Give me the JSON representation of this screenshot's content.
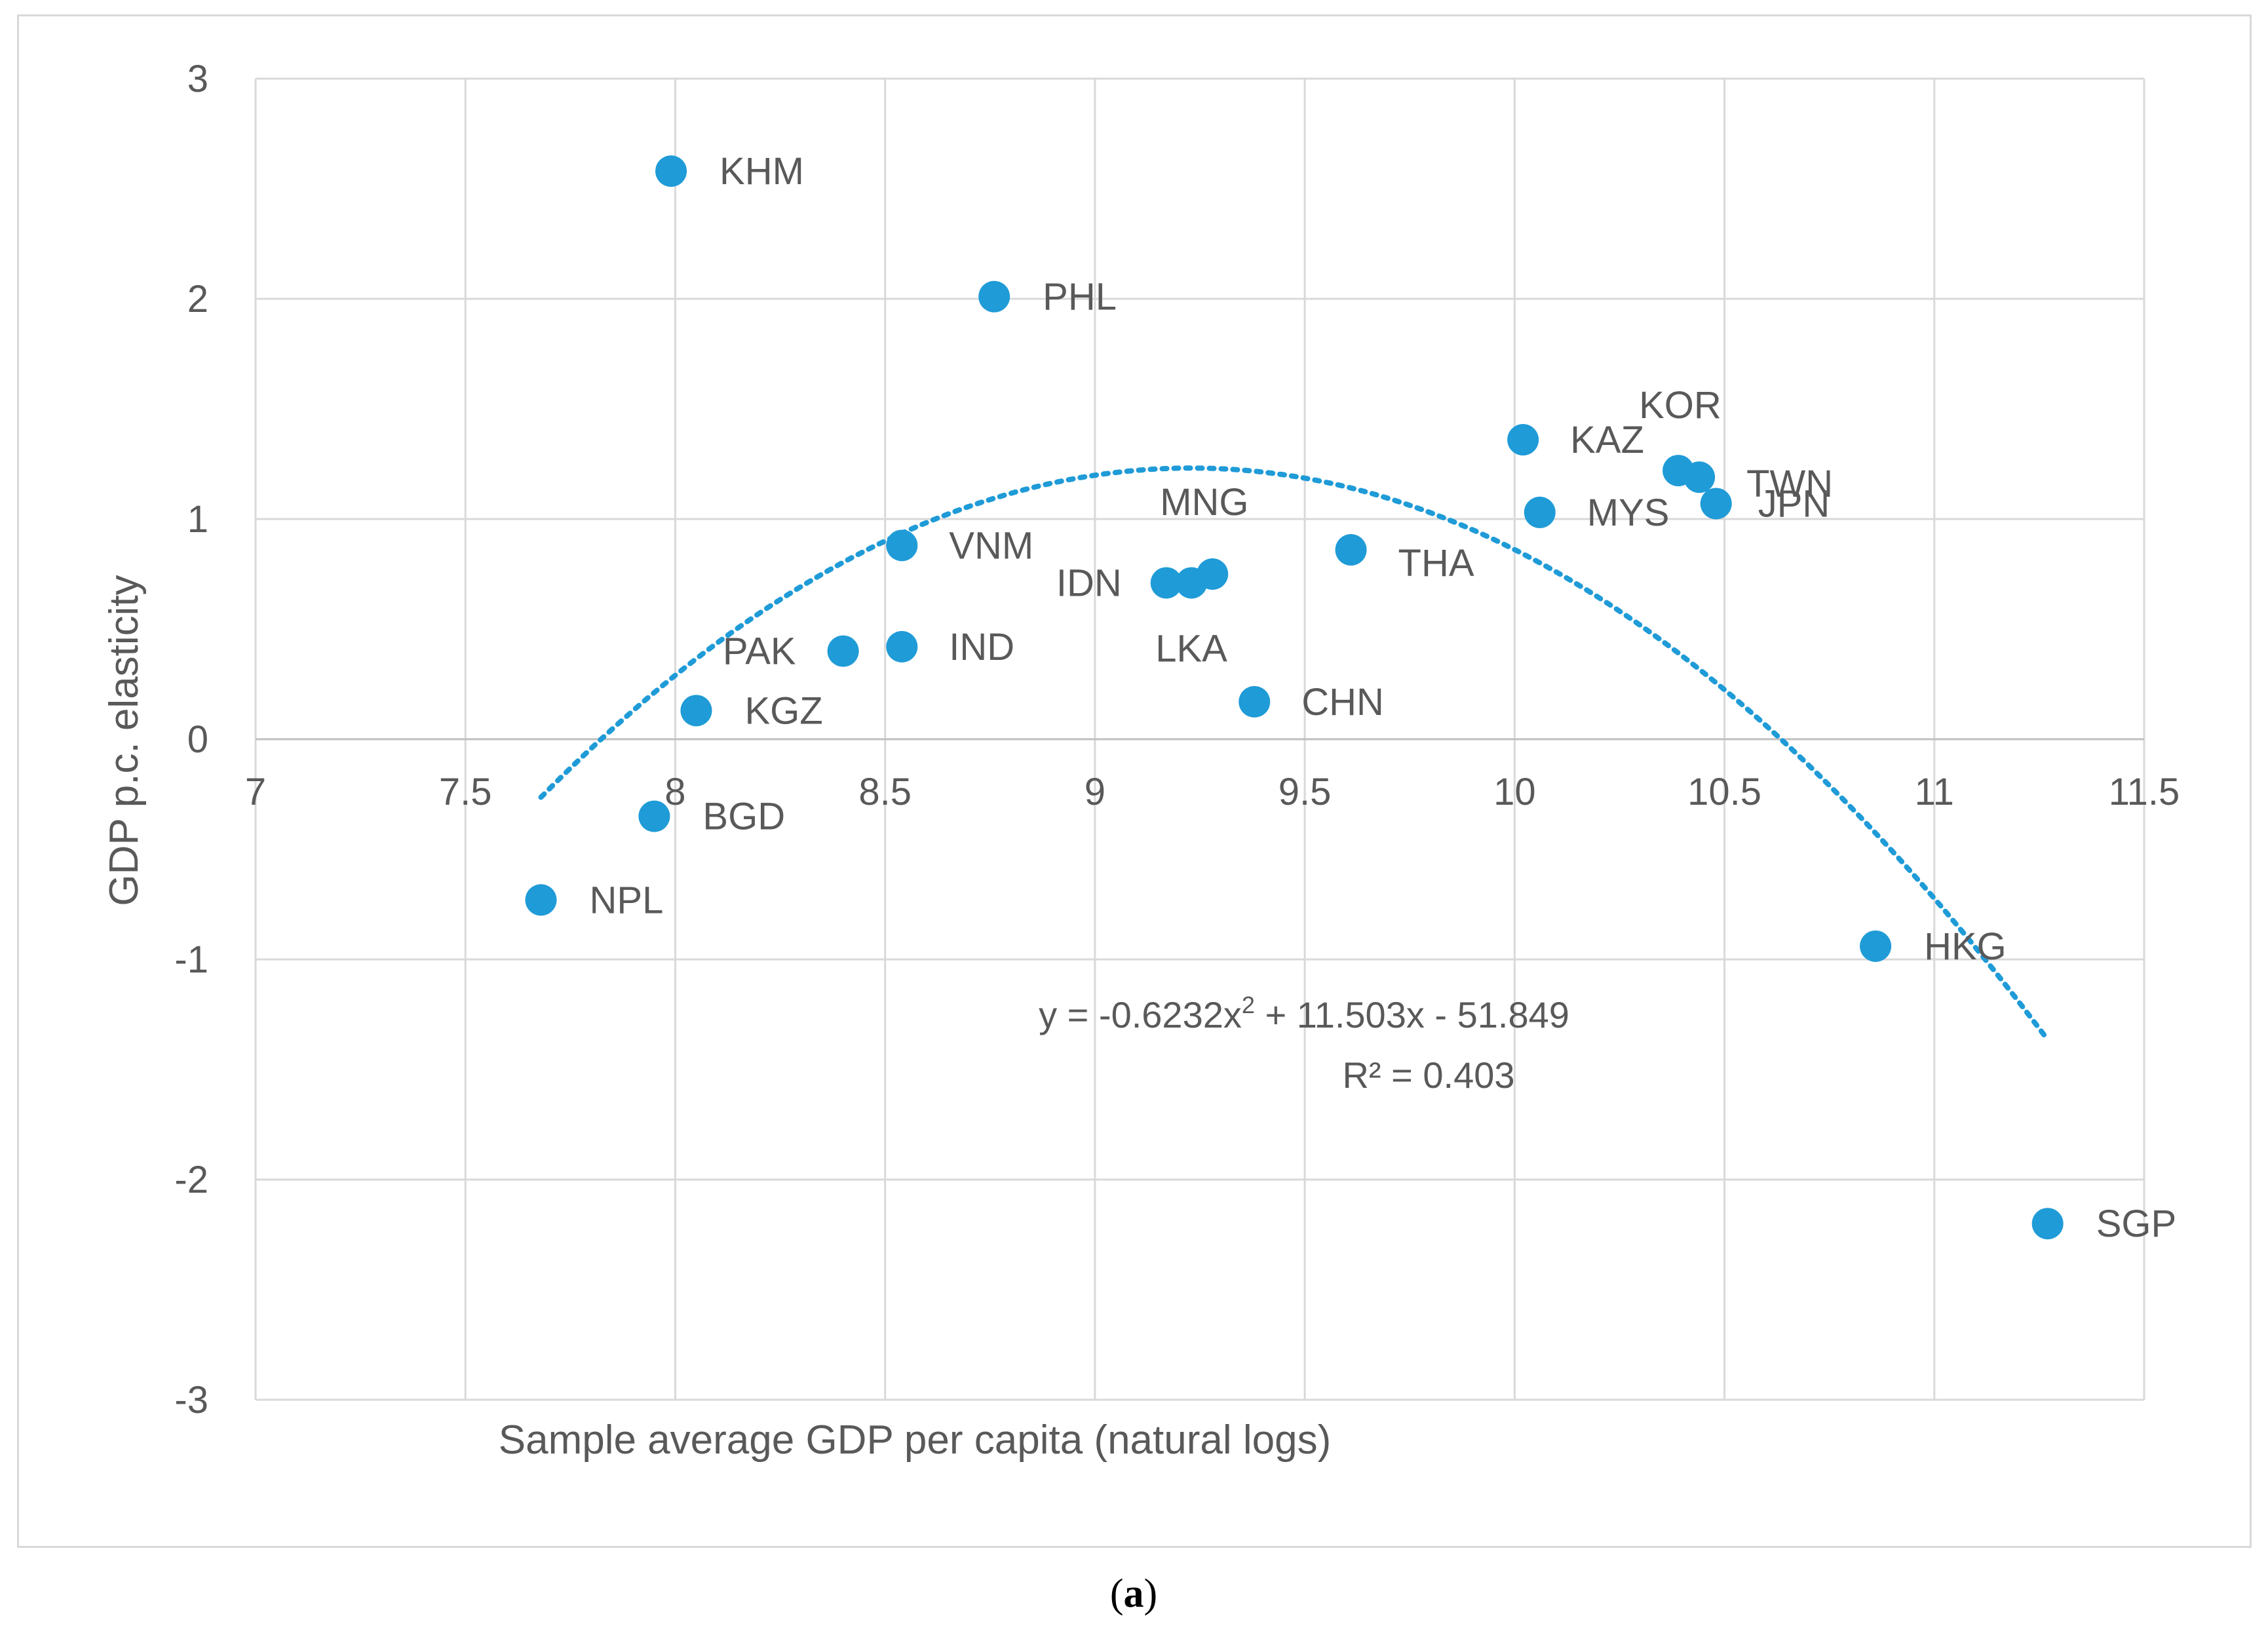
{
  "chart_data": {
    "type": "scatter",
    "title": "",
    "xlabel": "Sample average GDP per capita (natural logs)",
    "ylabel": "GDP p.c. elasticity",
    "xlim": [
      7,
      11.5
    ],
    "ylim": [
      -3,
      3
    ],
    "x_ticks": [
      7,
      7.5,
      8,
      8.5,
      9,
      9.5,
      10,
      10.5,
      11,
      11.5
    ],
    "x_tick_labels": [
      "7",
      "7.5",
      "8",
      "8.5",
      "9",
      "9.5",
      "10",
      "10.5",
      "11",
      "11.5"
    ],
    "y_ticks": [
      -3,
      -2,
      -1,
      0,
      1,
      2,
      3
    ],
    "y_tick_labels": [
      "-3",
      "-2",
      "-1",
      "0",
      "1",
      "2",
      "3"
    ],
    "grid": true,
    "marker_color": "#1f9bd7",
    "trend_color": "#1f9bd7",
    "text_color": "#595959",
    "points": [
      {
        "label": "KHM",
        "x": 7.99,
        "y": 2.58
      },
      {
        "label": "PHL",
        "x": 8.76,
        "y": 2.01
      },
      {
        "label": "KAZ",
        "x": 10.02,
        "y": 1.36
      },
      {
        "label": "KOR",
        "x": 10.39,
        "y": 1.22
      },
      {
        "label": "TWN",
        "x": 10.44,
        "y": 1.19
      },
      {
        "label": "JPN",
        "x": 10.48,
        "y": 1.07
      },
      {
        "label": "MYS",
        "x": 10.06,
        "y": 1.03
      },
      {
        "label": "VNM",
        "x": 8.54,
        "y": 0.88
      },
      {
        "label": "THA",
        "x": 9.61,
        "y": 0.86
      },
      {
        "label": "MNG",
        "x": 9.28,
        "y": 0.75
      },
      {
        "label": "IDN",
        "x": 9.17,
        "y": 0.71
      },
      {
        "label": "LKA",
        "x": 9.23,
        "y": 0.71
      },
      {
        "label": "PAK",
        "x": 8.4,
        "y": 0.4
      },
      {
        "label": "IND",
        "x": 8.54,
        "y": 0.42
      },
      {
        "label": "CHN",
        "x": 9.38,
        "y": 0.17
      },
      {
        "label": "KGZ",
        "x": 8.05,
        "y": 0.13
      },
      {
        "label": "BGD",
        "x": 7.95,
        "y": -0.35
      },
      {
        "label": "NPL",
        "x": 7.68,
        "y": -0.73
      },
      {
        "label": "HKG",
        "x": 10.86,
        "y": -0.94
      },
      {
        "label": "SGP",
        "x": 11.27,
        "y": -2.2
      }
    ],
    "trendline": {
      "type": "polynomial",
      "coefficients": [
        -0.6232,
        11.503,
        -51.849
      ],
      "x_range": [
        7.68,
        11.27
      ],
      "equation": "y = -0.6232x",
      "equation_sup": "2",
      "equation_rest": " + 11.503x - 51.849",
      "r_squared": "R² = 0.403"
    }
  },
  "caption": {
    "open": "(",
    "letter": "a",
    "close": ")"
  }
}
